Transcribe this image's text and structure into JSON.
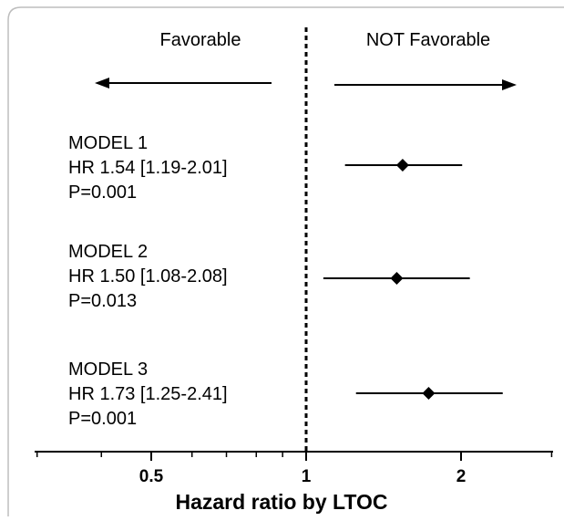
{
  "chart_data": {
    "type": "forest",
    "scale": "log",
    "x_axis": {
      "title": "Hazard ratio by LTOC",
      "ticks": [
        {
          "value": 0.5,
          "label": "0.5"
        },
        {
          "value": 1,
          "label": "1"
        },
        {
          "value": 2,
          "label": "2"
        }
      ],
      "minor_ticks": [
        0.3,
        0.4,
        0.6,
        0.7,
        0.8,
        0.9,
        3
      ],
      "range": [
        0.28,
        3.1
      ]
    },
    "reference_line": 1,
    "directions": {
      "left": "Favorable",
      "right": "NOT Favorable"
    },
    "models": [
      {
        "name": "MODEL 1",
        "hr_text": "HR 1.54 [1.19-2.01]",
        "p_text": "P=0.001",
        "hr": 1.54,
        "lower": 1.19,
        "upper": 2.01
      },
      {
        "name": "MODEL 2",
        "hr_text": "HR 1.50 [1.08-2.08]",
        "p_text": "P=0.013",
        "hr": 1.5,
        "lower": 1.08,
        "upper": 2.08
      },
      {
        "name": "MODEL 3",
        "hr_text": "HR 1.73 [1.25-2.41]",
        "p_text": "P=0.001",
        "hr": 1.73,
        "lower": 1.25,
        "upper": 2.41
      }
    ]
  }
}
